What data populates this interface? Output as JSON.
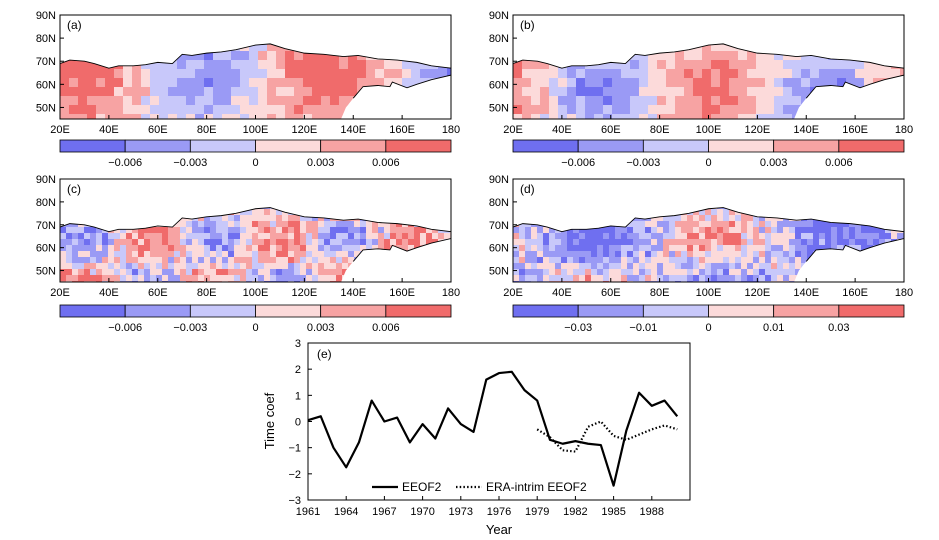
{
  "colors": {
    "neg3": "#6f6ff0",
    "neg2": "#9a9af5",
    "neg1": "#c8c8fa",
    "pos1": "#fcdada",
    "pos2": "#f7a3a3",
    "pos3": "#f06b6b",
    "coast": "#000000",
    "line": "#000000"
  },
  "chart_data": [
    {
      "type": "heatmap",
      "panel_label": "(a)",
      "lon_ticks": [
        "20E",
        "40E",
        "60E",
        "80E",
        "100E",
        "120E",
        "140E",
        "160E",
        "180"
      ],
      "lat_ticks": [
        "90N",
        "80N",
        "70N",
        "60N",
        "50N"
      ],
      "lon_range": [
        20,
        180
      ],
      "lat_range": [
        45,
        90
      ],
      "colorbar_labels": [
        "−0.006",
        "−0.003",
        "0",
        "0.003",
        "0.006"
      ],
      "bias": 0.25,
      "seed": 3
    },
    {
      "type": "heatmap",
      "panel_label": "(b)",
      "lon_ticks": [
        "20E",
        "40E",
        "60E",
        "80E",
        "100E",
        "120E",
        "140E",
        "160E",
        "180"
      ],
      "lat_ticks": [
        "90N",
        "80N",
        "70N",
        "60N",
        "50N"
      ],
      "lon_range": [
        20,
        180
      ],
      "lat_range": [
        45,
        90
      ],
      "colorbar_labels": [
        "−0.006",
        "−0.003",
        "0",
        "0.003",
        "0.006"
      ],
      "bias": 0.15,
      "seed": 7
    },
    {
      "type": "heatmap",
      "panel_label": "(c)",
      "lon_ticks": [
        "20E",
        "40E",
        "60E",
        "80E",
        "100E",
        "120E",
        "140E",
        "160E",
        "180"
      ],
      "lat_ticks": [
        "90N",
        "80N",
        "70N",
        "60N",
        "50N"
      ],
      "lon_range": [
        20,
        180
      ],
      "lat_range": [
        45,
        90
      ],
      "colorbar_labels": [
        "−0.006",
        "−0.003",
        "0",
        "0.003",
        "0.006"
      ],
      "bias": 0.1,
      "seed": 11
    },
    {
      "type": "heatmap",
      "panel_label": "(d)",
      "lon_ticks": [
        "20E",
        "40E",
        "60E",
        "80E",
        "100E",
        "120E",
        "140E",
        "160E",
        "180"
      ],
      "lat_ticks": [
        "90N",
        "80N",
        "70N",
        "60N",
        "50N"
      ],
      "lon_range": [
        20,
        180
      ],
      "lat_range": [
        45,
        90
      ],
      "colorbar_labels": [
        "−0.03",
        "−0.01",
        "0",
        "0.01",
        "0.03"
      ],
      "bias": -0.2,
      "seed": 19
    },
    {
      "type": "line",
      "panel_label": "(e)",
      "xlabel": "Year",
      "ylabel": "Time coef",
      "xlim": [
        1961,
        1991
      ],
      "ylim": [
        -3,
        3
      ],
      "xticks": [
        1961,
        1964,
        1967,
        1970,
        1973,
        1976,
        1979,
        1982,
        1985,
        1988
      ],
      "yticks": [
        -3,
        -2,
        -1,
        0,
        1,
        2,
        3
      ],
      "legend_position": "bottom",
      "series": [
        {
          "name": "EEOF2",
          "style": "solid",
          "x": [
            1961,
            1962,
            1963,
            1964,
            1965,
            1966,
            1967,
            1968,
            1969,
            1970,
            1971,
            1972,
            1973,
            1974,
            1975,
            1976,
            1977,
            1978,
            1979,
            1980,
            1981,
            1982,
            1983,
            1984,
            1985,
            1986,
            1987,
            1988,
            1989,
            1990
          ],
          "y": [
            0.05,
            0.2,
            -1.0,
            -1.75,
            -0.8,
            0.8,
            0.0,
            0.15,
            -0.8,
            -0.1,
            -0.65,
            0.5,
            -0.1,
            -0.4,
            1.6,
            1.85,
            1.9,
            1.2,
            0.8,
            -0.7,
            -0.85,
            -0.75,
            -0.85,
            -0.9,
            -2.45,
            -0.35,
            1.1,
            0.6,
            0.8,
            0.2
          ]
        },
        {
          "name": "ERA-intrim EEOF2",
          "style": "dotted",
          "x": [
            1979,
            1980,
            1981,
            1982,
            1983,
            1984,
            1985,
            1986,
            1987,
            1988,
            1989,
            1990
          ],
          "y": [
            -0.3,
            -0.6,
            -1.1,
            -1.15,
            -0.2,
            0.0,
            -0.55,
            -0.7,
            -0.5,
            -0.3,
            -0.15,
            -0.3
          ]
        }
      ]
    }
  ]
}
